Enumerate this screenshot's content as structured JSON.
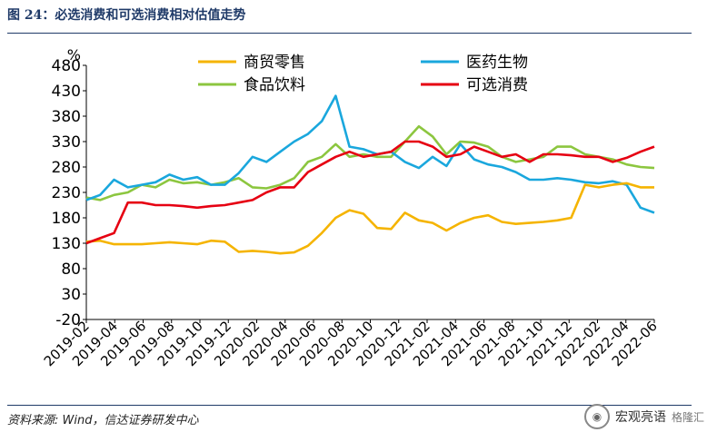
{
  "title": "图 24：必选消费和可选消费相对估值走势",
  "source": "资料来源: Wind，信达证券研发中心",
  "watermark": {
    "name": "宏观亮语",
    "badge": "格隆汇"
  },
  "chart_data": {
    "type": "line",
    "ylabel": "%",
    "ylim": [
      -20,
      480
    ],
    "yticks": [
      -20,
      30,
      80,
      130,
      180,
      230,
      280,
      330,
      380,
      430,
      480
    ],
    "xticks": [
      "2019-02",
      "2019-04",
      "2019-06",
      "2019-08",
      "2019-10",
      "2019-12",
      "2020-02",
      "2020-04",
      "2020-06",
      "2020-08",
      "2020-10",
      "2020-12",
      "2021-02",
      "2021-04",
      "2021-06",
      "2021-08",
      "2021-10",
      "2021-12",
      "2022-02",
      "2022-04",
      "2022-06"
    ],
    "legend": [
      "商贸零售",
      "医药生物",
      "食品饮料",
      "可选消费"
    ],
    "legend_placement": "top",
    "grid": false,
    "x_months": [
      0,
      1,
      2,
      3,
      4,
      5,
      6,
      7,
      8,
      9,
      10,
      11,
      12,
      13,
      14,
      15,
      16,
      17,
      18,
      19,
      20,
      21,
      22,
      23,
      24,
      25,
      26,
      27,
      28,
      29,
      30,
      31,
      32,
      33,
      34,
      35,
      36,
      37,
      38,
      39,
      40,
      41
    ],
    "series": [
      {
        "name": "商贸零售",
        "color": "#f5b400",
        "values": [
          133,
          135,
          128,
          128,
          128,
          130,
          132,
          130,
          128,
          135,
          133,
          113,
          115,
          113,
          110,
          112,
          125,
          150,
          180,
          195,
          188,
          160,
          158,
          190,
          175,
          170,
          155,
          170,
          180,
          185,
          172,
          168,
          170,
          172,
          175,
          180,
          245,
          240,
          245,
          248,
          240,
          240
        ]
      },
      {
        "name": "医药生物",
        "color": "#1aa7dd",
        "values": [
          215,
          225,
          255,
          240,
          245,
          250,
          265,
          255,
          260,
          245,
          245,
          268,
          300,
          290,
          310,
          330,
          345,
          370,
          420,
          320,
          315,
          305,
          310,
          290,
          278,
          300,
          282,
          325,
          295,
          285,
          280,
          270,
          255,
          255,
          258,
          255,
          250,
          248,
          252,
          245,
          200,
          190
        ]
      },
      {
        "name": "食品饮料",
        "color": "#8cc63f",
        "values": [
          220,
          215,
          225,
          230,
          245,
          240,
          255,
          248,
          250,
          245,
          250,
          258,
          240,
          238,
          245,
          258,
          290,
          300,
          325,
          300,
          305,
          300,
          300,
          330,
          360,
          340,
          305,
          330,
          328,
          320,
          300,
          290,
          295,
          300,
          320,
          320,
          305,
          300,
          295,
          285,
          280,
          278
        ]
      },
      {
        "name": "可选消费",
        "color": "#e60012",
        "values": [
          130,
          140,
          150,
          210,
          210,
          205,
          205,
          203,
          200,
          203,
          205,
          210,
          215,
          230,
          240,
          240,
          270,
          285,
          300,
          310,
          300,
          305,
          310,
          330,
          330,
          320,
          300,
          305,
          320,
          310,
          300,
          305,
          290,
          305,
          305,
          303,
          300,
          300,
          290,
          298,
          310,
          320
        ]
      }
    ]
  }
}
